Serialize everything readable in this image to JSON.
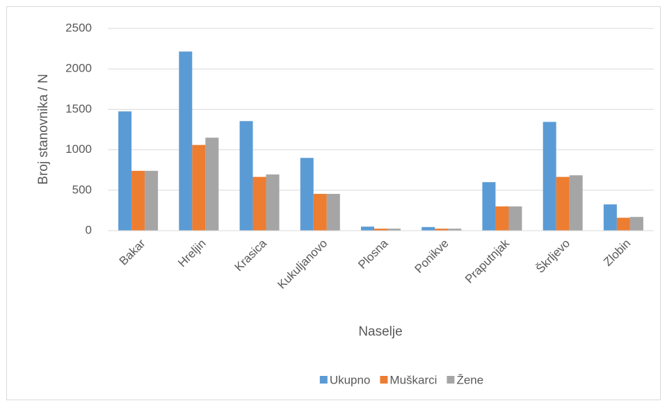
{
  "chart_data": {
    "type": "bar",
    "x_label": "Naselje",
    "y_label": "Broj stanovnika / N",
    "categories": [
      "Bakar",
      "Hreljin",
      "Krasica",
      "Kukuljanovo",
      "Plosna",
      "Ponikve",
      "Praputnjak",
      "Škrljevo",
      "Zlobin"
    ],
    "series": [
      {
        "name": "Ukupno",
        "color": "#5b9bd5",
        "values": [
          1475,
          2215,
          1355,
          900,
          50,
          45,
          600,
          1345,
          325
        ]
      },
      {
        "name": "Muškarci",
        "color": "#ed7d31",
        "values": [
          740,
          1060,
          665,
          455,
          25,
          25,
          300,
          665,
          160
        ]
      },
      {
        "name": "Žene",
        "color": "#a5a5a5",
        "values": [
          740,
          1150,
          695,
          455,
          25,
          25,
          300,
          685,
          170
        ]
      }
    ],
    "ylim": [
      0,
      2500
    ],
    "yticks": [
      0,
      500,
      1000,
      1500,
      2000,
      2500
    ],
    "grid": true,
    "legend": "bottom"
  }
}
